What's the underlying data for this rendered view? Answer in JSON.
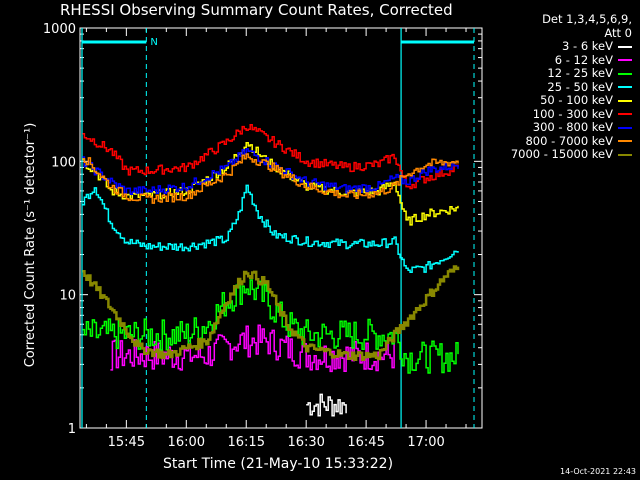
{
  "chart_data": {
    "type": "line",
    "title": "RHESSI Observing Summary Count Rates, Corrected",
    "xlabel": "Start Time (21-May-10 15:33:22)",
    "ylabel": "Corrected Count Rate (s⁻¹ detector⁻¹)",
    "yscale": "log",
    "ylim": [
      1,
      1000
    ],
    "xlim_minutes": [
      15.5,
      17.9
    ],
    "x_tick_labels": [
      "15:45",
      "16:00",
      "16:15",
      "16:30",
      "16:45",
      "17:00"
    ],
    "y_tick_labels": [
      "1",
      "10",
      "100",
      "1000"
    ],
    "legend_header_1": "Det 1,3,4,5,6,9,",
    "legend_header_2": "Att 0",
    "legend_position": "top-right outside",
    "timestamp": "14-Oct-2021 22:43",
    "markers": [
      {
        "label": "N",
        "time": "15:50"
      }
    ],
    "series": [
      {
        "name": "3 - 6 keV",
        "color": "#ffffff",
        "x": [
          "16:30",
          "16:40"
        ],
        "values": [
          1.5,
          1.5
        ]
      },
      {
        "name": "6 - 12 keV",
        "color": "#ff00ff",
        "x": [
          "15:41",
          "15:48",
          "15:55",
          "16:05",
          "16:13",
          "16:20",
          "16:30",
          "16:40",
          "16:48",
          "16:52"
        ],
        "values": [
          3.5,
          3.5,
          3.5,
          3.5,
          4.5,
          4.5,
          3.5,
          3.5,
          3.5,
          3.5
        ]
      },
      {
        "name": "12 - 25 keV",
        "color": "#00ff00",
        "x": [
          "15:34",
          "15:41",
          "15:48",
          "15:55",
          "16:00",
          "16:05",
          "16:10",
          "16:15",
          "16:20",
          "16:25",
          "16:30",
          "16:40",
          "16:48",
          "16:52",
          "16:55",
          "17:00",
          "17:08"
        ],
        "values": [
          5,
          5,
          5,
          5,
          5,
          6,
          9,
          12,
          9,
          6,
          5,
          5,
          5,
          5,
          3.4,
          3.4,
          3.4
        ]
      },
      {
        "name": "25 - 50 keV",
        "color": "#00ffff",
        "x": [
          "15:34",
          "15:37",
          "15:41",
          "15:45",
          "15:50",
          "16:00",
          "16:10",
          "16:13",
          "16:15",
          "16:18",
          "16:22",
          "16:30",
          "16:40",
          "16:48",
          "16:52",
          "16:55",
          "17:00",
          "17:08"
        ],
        "values": [
          50,
          65,
          35,
          25,
          23,
          23,
          26,
          40,
          65,
          40,
          28,
          25,
          24,
          24,
          25,
          15,
          16,
          22
        ]
      },
      {
        "name": "50 - 100 keV",
        "color": "#ffff00",
        "x": [
          "15:34",
          "15:37",
          "15:41",
          "15:45",
          "15:50",
          "16:00",
          "16:10",
          "16:15",
          "16:20",
          "16:30",
          "16:40",
          "16:48",
          "16:52",
          "16:55",
          "17:00",
          "17:08"
        ],
        "values": [
          100,
          85,
          60,
          55,
          55,
          60,
          90,
          140,
          100,
          65,
          58,
          60,
          70,
          35,
          40,
          45
        ]
      },
      {
        "name": "100 - 300 keV",
        "color": "#ff0000",
        "x": [
          "15:34",
          "15:41",
          "15:45",
          "15:50",
          "16:00",
          "16:10",
          "16:15",
          "16:20",
          "16:30",
          "16:40",
          "16:48",
          "16:52",
          "16:55",
          "17:00",
          "17:08"
        ],
        "values": [
          160,
          120,
          85,
          85,
          90,
          140,
          185,
          150,
          100,
          90,
          95,
          110,
          65,
          75,
          90
        ]
      },
      {
        "name": "300 - 800 keV",
        "color": "#0000ff",
        "x": [
          "15:34",
          "15:41",
          "15:45",
          "15:50",
          "16:00",
          "16:10",
          "16:15",
          "16:20",
          "16:30",
          "16:40",
          "16:48",
          "16:52",
          "16:55",
          "17:00",
          "17:08"
        ],
        "values": [
          100,
          70,
          60,
          60,
          65,
          90,
          120,
          100,
          70,
          62,
          65,
          75,
          70,
          85,
          95
        ]
      },
      {
        "name": "800 - 7000 keV",
        "color": "#ff8800",
        "x": [
          "15:34",
          "15:41",
          "15:45",
          "15:50",
          "16:00",
          "16:10",
          "16:15",
          "16:20",
          "16:30",
          "16:40",
          "16:48",
          "16:52",
          "16:55",
          "17:00",
          "17:08"
        ],
        "values": [
          110,
          65,
          55,
          52,
          55,
          80,
          110,
          95,
          65,
          55,
          58,
          65,
          80,
          95,
          100
        ]
      },
      {
        "name": "7000 - 15000 keV",
        "color": "#888800",
        "x": [
          "15:34",
          "15:41",
          "15:48",
          "15:55",
          "16:05",
          "16:10",
          "16:15",
          "16:20",
          "16:25",
          "16:30",
          "16:40",
          "16:48",
          "16:52",
          "16:58",
          "17:05",
          "17:08"
        ],
        "values": [
          15,
          8,
          4,
          3.5,
          4.5,
          9,
          15,
          12,
          6,
          4,
          3.5,
          3.5,
          5,
          8,
          14,
          16
        ]
      }
    ]
  }
}
